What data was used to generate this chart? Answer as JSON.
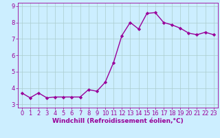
{
  "x": [
    0,
    1,
    2,
    3,
    4,
    5,
    6,
    7,
    8,
    9,
    10,
    11,
    12,
    13,
    14,
    15,
    16,
    17,
    18,
    19,
    20,
    21,
    22,
    23
  ],
  "y": [
    3.7,
    3.4,
    3.7,
    3.4,
    3.45,
    3.45,
    3.45,
    3.45,
    3.9,
    3.8,
    4.35,
    5.55,
    7.2,
    8.0,
    7.6,
    8.55,
    8.6,
    8.0,
    7.85,
    7.65,
    7.35,
    7.25,
    7.4,
    7.25
  ],
  "line_color": "#990099",
  "marker": "D",
  "marker_size": 2.2,
  "bg_color": "#cceeff",
  "grid_color": "#aacccc",
  "xlabel": "Windchill (Refroidissement éolien,°C)",
  "ylabel": "",
  "xlim": [
    -0.5,
    23.5
  ],
  "ylim": [
    2.8,
    9.2
  ],
  "yticks": [
    3,
    4,
    5,
    6,
    7,
    8,
    9
  ],
  "xticks": [
    0,
    1,
    2,
    3,
    4,
    5,
    6,
    7,
    8,
    9,
    10,
    11,
    12,
    13,
    14,
    15,
    16,
    17,
    18,
    19,
    20,
    21,
    22,
    23
  ],
  "xlabel_fontsize": 6.5,
  "tick_fontsize": 6.0,
  "line_width": 1.0
}
